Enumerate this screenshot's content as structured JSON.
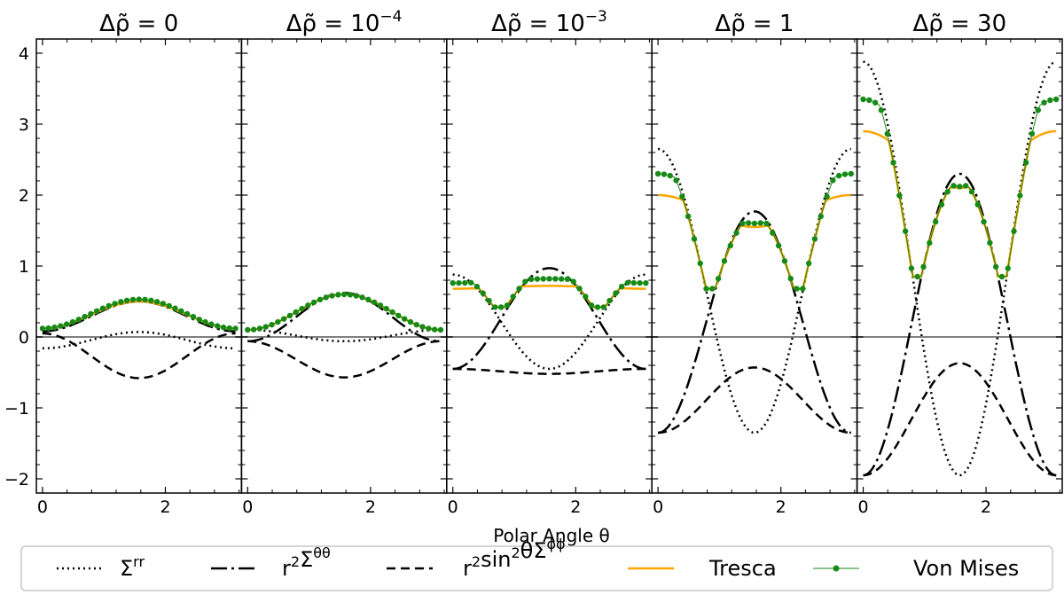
{
  "chart_data": {
    "type": "line",
    "xlabel": "Polar Angle θ",
    "ylabel": "",
    "xlim": [
      -0.1,
      3.24
    ],
    "ylim": [
      -2.2,
      4.2
    ],
    "x_ticks": [
      0,
      2
    ],
    "x_tick_labels": [
      "0",
      "2"
    ],
    "y_ticks": [
      -2,
      -1,
      0,
      1,
      2,
      3,
      4
    ],
    "y_tick_labels": [
      "−2",
      "−1",
      "0",
      "1",
      "2",
      "3",
      "4"
    ],
    "zero_line_color": "#808080",
    "panels": [
      {
        "title_base": "Δρ̃ = ",
        "title_value": "0",
        "title_sup": "",
        "srr": [
          -0.16,
          0.07
        ],
        "stt": [
          0.08,
          0.5
        ],
        "spp": [
          0.05,
          -0.58
        ],
        "tresca": [
          0.12,
          0.5
        ],
        "vm": [
          0.12,
          0.53
        ]
      },
      {
        "title_base": "Δρ̃ = ",
        "title_value": "10",
        "title_sup": "−4",
        "srr": [
          0.1,
          -0.06
        ],
        "stt": [
          -0.06,
          0.62
        ],
        "spp": [
          -0.06,
          -0.57
        ],
        "tresca": [
          0.1,
          0.6
        ],
        "vm": [
          0.1,
          0.6
        ]
      },
      {
        "title_base": "Δρ̃ = ",
        "title_value": "10",
        "title_sup": "−3",
        "srr": [
          0.88,
          -0.45
        ],
        "stt": [
          -0.45,
          0.97
        ],
        "spp": [
          -0.45,
          -0.52
        ],
        "tresca": [
          0.68,
          0.72
        ],
        "vm": [
          0.76,
          0.82
        ],
        "cross": 0.42
      },
      {
        "title_base": "Δρ̃ = ",
        "title_value": "1",
        "title_sup": "",
        "srr": [
          2.65,
          -1.35
        ],
        "stt": [
          -1.35,
          1.77
        ],
        "spp": [
          -1.35,
          -0.43
        ],
        "tresca": [
          2.0,
          1.55
        ],
        "vm": [
          2.3,
          1.6
        ],
        "cross": 0.68
      },
      {
        "title_base": "Δρ̃ = ",
        "title_value": "30",
        "title_sup": "",
        "srr": [
          3.88,
          -1.95
        ],
        "stt": [
          -1.95,
          2.3
        ],
        "spp": [
          -1.95,
          -0.37
        ],
        "tresca": [
          2.9,
          2.1
        ],
        "vm": [
          3.35,
          2.12
        ],
        "cross": 0.85
      }
    ],
    "legend": {
      "position": "bottom",
      "entries": [
        {
          "key": "srr",
          "label_base": "Σ",
          "label_sup": "rr",
          "style": "dotted",
          "color": "#000000"
        },
        {
          "key": "stt",
          "label_base": "r",
          "label_sup": "2",
          "label_mid": "Σ",
          "label_sup2": "θθ",
          "style": "dashdot",
          "color": "#000000"
        },
        {
          "key": "spp",
          "label_base": "r",
          "label_sup": "2",
          "label_mid": "sin",
          "label_sup2": "2",
          "label_tail": "θΣ",
          "label_sup3": "ϕϕ",
          "style": "dashed",
          "color": "#000000"
        },
        {
          "key": "tresca",
          "label_base": "Tresca",
          "style": "solid",
          "color": "#ffa500"
        },
        {
          "key": "vm",
          "label_base": "Von Mises",
          "style": "solid-marker",
          "color": "#168a16"
        }
      ]
    }
  }
}
